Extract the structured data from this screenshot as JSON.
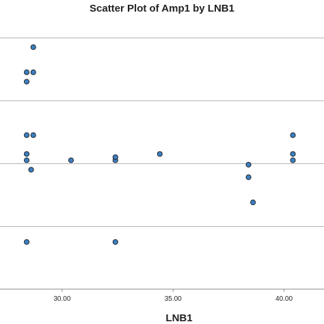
{
  "chart_data": {
    "type": "scatter",
    "title": "Scatter Plot of Amp1 by LNB1",
    "xlabel": "LNB1",
    "ylabel": "",
    "xlim": [
      27.2,
      41.8
    ],
    "ylim": [
      0,
      4.6
    ],
    "x_ticks": [
      {
        "value": 30,
        "label": "30.00"
      },
      {
        "value": 35,
        "label": "35.00"
      },
      {
        "value": 40,
        "label": "40.00"
      }
    ],
    "y_gridlines": [
      1,
      2,
      3,
      4
    ],
    "grid": true,
    "marker_color": "#3d7fc0",
    "marker_edge_color": "#1a1a1a",
    "points": [
      {
        "x": 28.7,
        "y": 3.85
      },
      {
        "x": 28.4,
        "y": 3.45
      },
      {
        "x": 28.7,
        "y": 3.45
      },
      {
        "x": 28.4,
        "y": 3.3
      },
      {
        "x": 28.4,
        "y": 2.45
      },
      {
        "x": 28.7,
        "y": 2.45
      },
      {
        "x": 28.4,
        "y": 2.15
      },
      {
        "x": 28.4,
        "y": 2.05
      },
      {
        "x": 28.6,
        "y": 1.9
      },
      {
        "x": 30.4,
        "y": 2.05
      },
      {
        "x": 32.4,
        "y": 2.05
      },
      {
        "x": 32.4,
        "y": 2.1
      },
      {
        "x": 34.4,
        "y": 2.15
      },
      {
        "x": 38.4,
        "y": 1.98
      },
      {
        "x": 38.4,
        "y": 1.78
      },
      {
        "x": 38.6,
        "y": 1.38
      },
      {
        "x": 40.4,
        "y": 2.45
      },
      {
        "x": 40.4,
        "y": 2.15
      },
      {
        "x": 40.4,
        "y": 2.05
      },
      {
        "x": 28.4,
        "y": 0.75
      },
      {
        "x": 32.4,
        "y": 0.75
      }
    ]
  }
}
